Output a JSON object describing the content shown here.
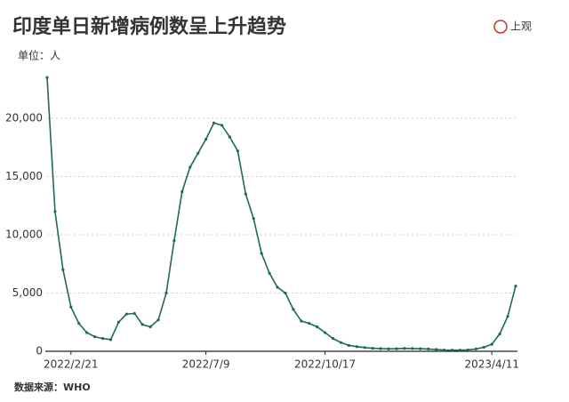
{
  "chart_data": {
    "type": "line",
    "title": "印度单日新增病例数呈上升趋势",
    "unit_label": "单位：人",
    "source": "数据来源：WHO",
    "categories": [
      null,
      null,
      null,
      "2022/2/21",
      null,
      null,
      null,
      null,
      null,
      null,
      null,
      null,
      null,
      null,
      null,
      null,
      null,
      null,
      null,
      null,
      "2022/7/9",
      null,
      null,
      null,
      null,
      null,
      null,
      null,
      null,
      null,
      null,
      null,
      null,
      null,
      null,
      "2022/10/17",
      null,
      null,
      null,
      null,
      null,
      null,
      null,
      null,
      null,
      null,
      null,
      null,
      null,
      null,
      null,
      null,
      null,
      null,
      null,
      null,
      "2023/4/11",
      null,
      null,
      null
    ],
    "values": [
      23500,
      12000,
      7000,
      3800,
      2400,
      1600,
      1250,
      1100,
      1000,
      2500,
      3200,
      3250,
      2300,
      2100,
      2700,
      5000,
      9500,
      13700,
      15800,
      17000,
      18200,
      19600,
      19400,
      18400,
      17200,
      13500,
      11400,
      8400,
      6700,
      5500,
      5000,
      3600,
      2600,
      2400,
      2100,
      1600,
      1100,
      750,
      500,
      400,
      320,
      260,
      230,
      210,
      220,
      250,
      240,
      220,
      200,
      150,
      110,
      100,
      100,
      120,
      200,
      350,
      600,
      1500,
      3000,
      5600
    ],
    "color": "#1f6b4c",
    "ylim": [
      0,
      25000
    ],
    "yticks": [
      0,
      {
        "value": 5000,
        "label": "5,000"
      },
      {
        "value": 10000,
        "label": "10,000"
      },
      {
        "value": 15000,
        "label": "15,000"
      },
      {
        "value": 20000,
        "label": "20,000"
      }
    ],
    "grid": true
  },
  "logo": "上观"
}
